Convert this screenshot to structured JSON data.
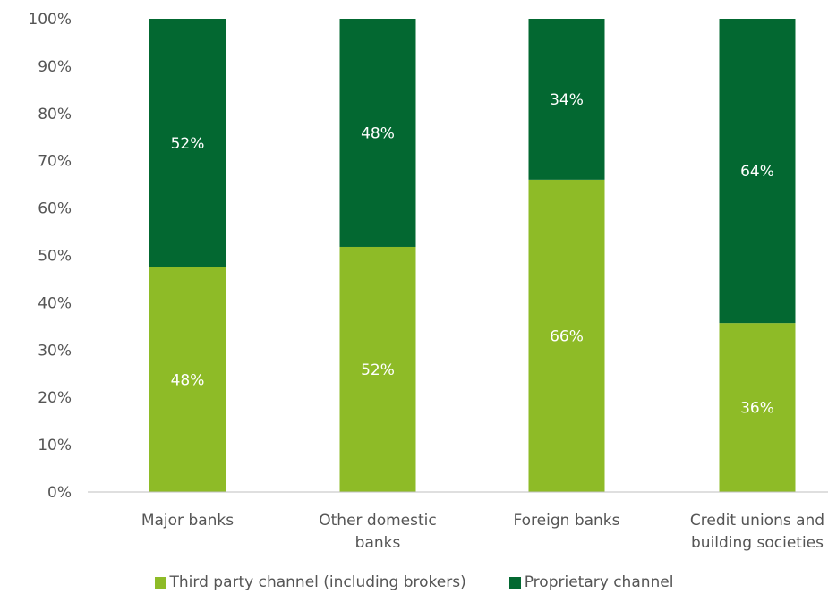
{
  "chart_data": {
    "type": "bar",
    "stacked": true,
    "categories": [
      [
        "Major banks"
      ],
      [
        "Other domestic",
        "banks"
      ],
      [
        "Foreign banks"
      ],
      [
        "Credit unions and",
        "building societies"
      ]
    ],
    "series": [
      {
        "name": "Third party channel (including brokers)",
        "color": "#8ebb27",
        "values": [
          47.5,
          51.8,
          66.0,
          35.7
        ],
        "labels": [
          "48%",
          "52%",
          "66%",
          "36%"
        ]
      },
      {
        "name": "Proprietary channel",
        "color": "#036831",
        "values": [
          52.5,
          48.2,
          34.0,
          64.3
        ],
        "labels": [
          "52%",
          "48%",
          "34%",
          "64%"
        ]
      }
    ],
    "ylim": [
      0,
      100
    ],
    "yticks": [
      "0%",
      "10%",
      "20%",
      "30%",
      "40%",
      "50%",
      "60%",
      "70%",
      "80%",
      "90%",
      "100%"
    ],
    "legend_position": "bottom",
    "grid": false
  }
}
